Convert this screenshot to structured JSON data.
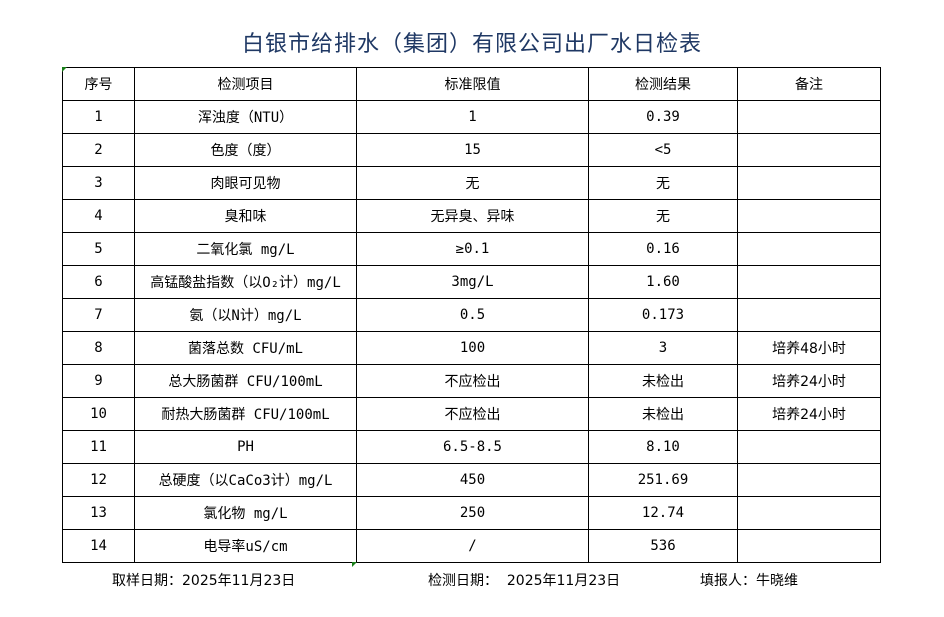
{
  "title": "白银市给排水（集团）有限公司出厂水日检表",
  "headers": [
    "序号",
    "检测项目",
    "标准限值",
    "检测结果",
    "备注"
  ],
  "rows": [
    [
      "1",
      "浑浊度（NTU）",
      "1",
      "0.39",
      ""
    ],
    [
      "2",
      "色度（度）",
      "15",
      "<5",
      ""
    ],
    [
      "3",
      "肉眼可见物",
      "无",
      "无",
      ""
    ],
    [
      "4",
      "臭和味",
      "无异臭、异味",
      "无",
      ""
    ],
    [
      "5",
      "二氧化氯 mg/L",
      "≥0.1",
      "0.16",
      ""
    ],
    [
      "6",
      "高锰酸盐指数（以O₂计）mg/L",
      "3mg/L",
      "1.60",
      ""
    ],
    [
      "7",
      "氨（以N计）mg/L",
      "0.5",
      "0.173",
      ""
    ],
    [
      "8",
      "菌落总数 CFU/mL",
      "100",
      "3",
      "培养48小时"
    ],
    [
      "9",
      "总大肠菌群 CFU/100mL",
      "不应检出",
      "未检出",
      "培养24小时"
    ],
    [
      "10",
      "耐热大肠菌群 CFU/100mL",
      "不应检出",
      "未检出",
      "培养24小时"
    ],
    [
      "11",
      "PH",
      "6.5-8.5",
      "8.10",
      ""
    ],
    [
      "12",
      "总硬度（以CaCo3计）mg/L",
      "450",
      "251.69",
      ""
    ],
    [
      "13",
      "氯化物 mg/L",
      "250",
      "12.74",
      ""
    ],
    [
      "14",
      "电导率uS/cm",
      "/",
      "536",
      ""
    ]
  ],
  "footer": {
    "sampling_date": "取样日期：2025年11月23日",
    "test_date": "检测日期：  2025年11月23日",
    "reporter": "填报人：牛晓维"
  },
  "colors": {
    "title": "#1f3864",
    "cell_marker": "#1a7f1a"
  }
}
